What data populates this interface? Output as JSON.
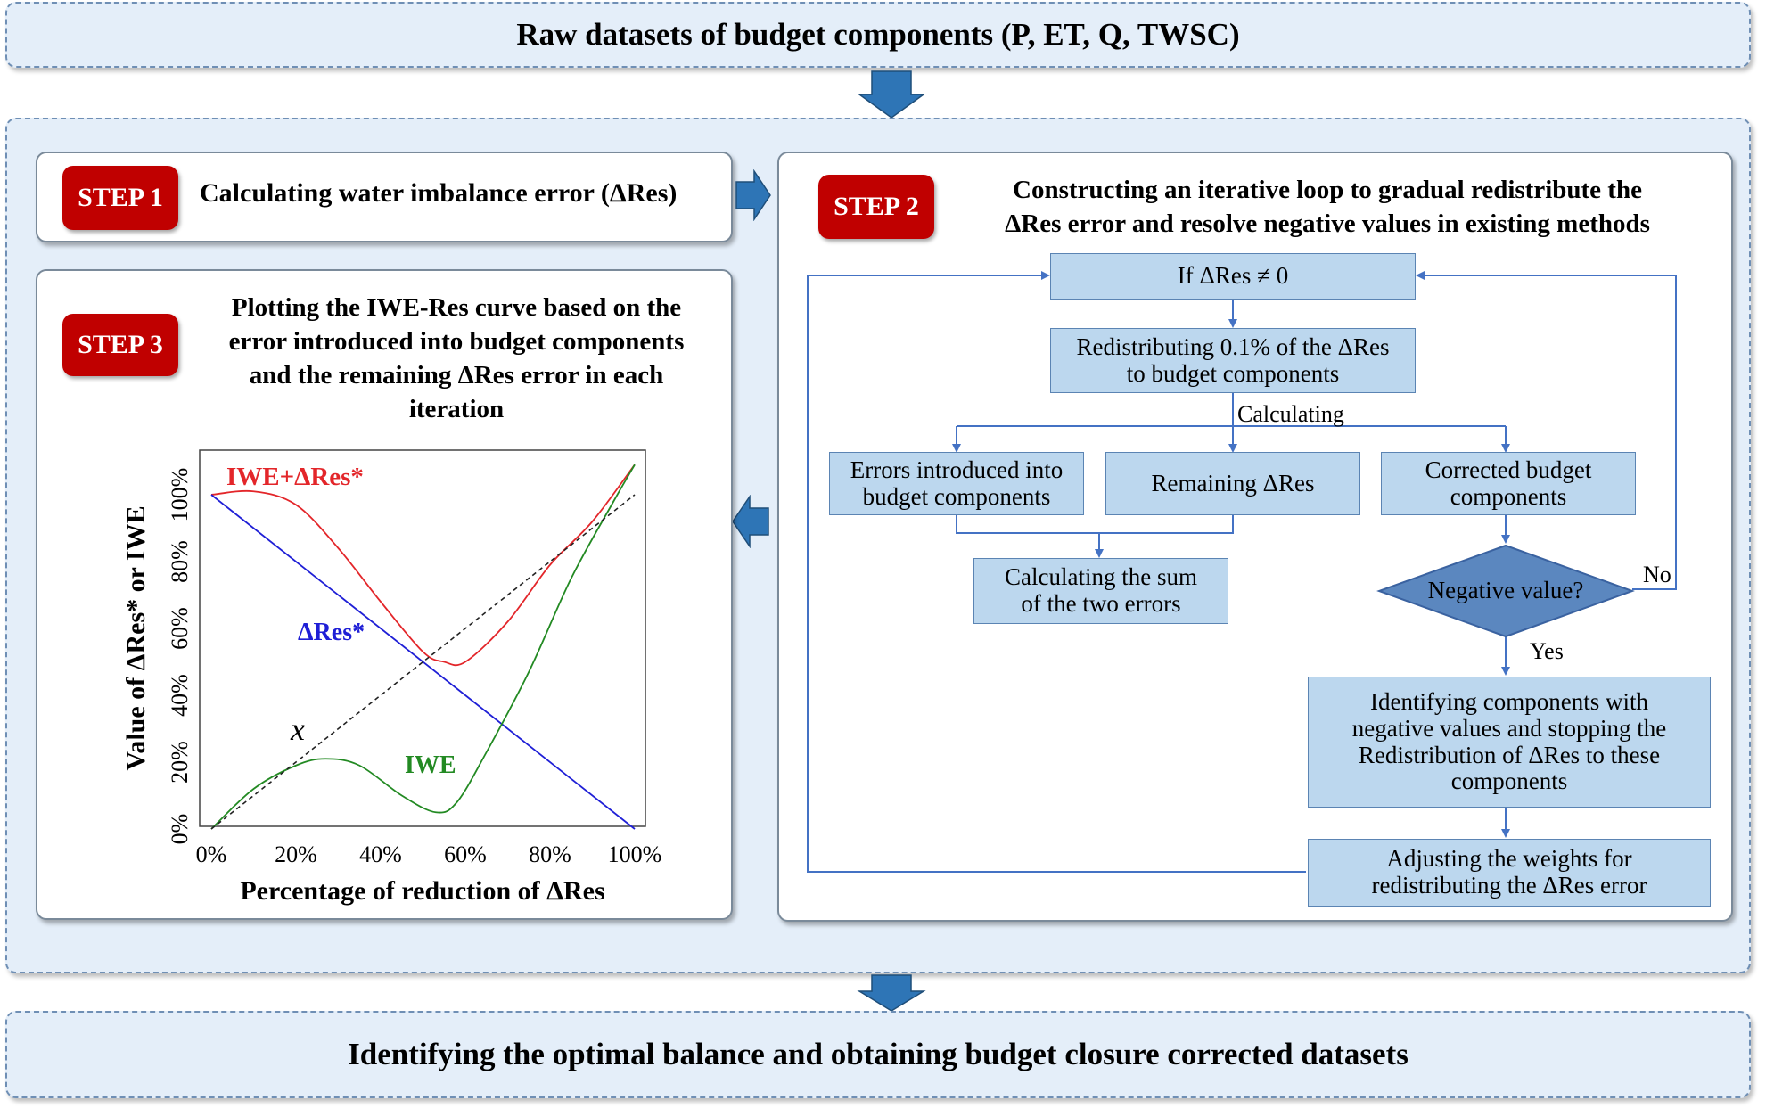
{
  "top_band": {
    "text": "Raw datasets of budget components (P, ET, Q, TWSC)"
  },
  "bottom_band": {
    "text": "Identifying the optimal balance and obtaining budget closure corrected datasets"
  },
  "step1": {
    "badge": "STEP 1",
    "title": "Calculating water imbalance error (ΔRes)"
  },
  "step2": {
    "badge": "STEP 2",
    "title_line1": "Constructing an iterative loop to gradual redistribute the",
    "title_line2": "ΔRes error and resolve negative values in existing methods",
    "box_if": "If ΔRes ≠ 0",
    "box_redistribute_l1": "Redistributing 0.1% of the ΔRes",
    "box_redistribute_l2": "to  budget components",
    "label_calculating": "Calculating",
    "box_errors_l1": "Errors introduced into",
    "box_errors_l2": "budget components",
    "box_remaining": "Remaining ΔRes",
    "box_corrected_l1": "Corrected budget",
    "box_corrected_l2": "components",
    "box_sum_l1": "Calculating the sum",
    "box_sum_l2": "of the two errors",
    "decision": "Negative value?",
    "label_no": "No",
    "label_yes": "Yes",
    "box_identify_l1": "Identifying components with",
    "box_identify_l2": "negative values and stopping the",
    "box_identify_l3": "Redistribution of ΔRes to these",
    "box_identify_l4": "components",
    "box_adjust_l1": "Adjusting the weights for",
    "box_adjust_l2": "redistributing the ΔRes error"
  },
  "step3": {
    "badge": "STEP 3",
    "title_line1": "Plotting the IWE-Res curve based on the",
    "title_line2": "error introduced into budget components",
    "title_line3": "and the remaining ΔRes error in each",
    "title_line4": "iteration"
  },
  "chart_data": {
    "type": "line",
    "xlabel": "Percentage of reduction of ΔRes",
    "ylabel": "Value of ΔRes* or IWE",
    "xlim": [
      0,
      100
    ],
    "ylim": [
      0,
      100
    ],
    "x_ticks": [
      "0%",
      "20%",
      "40%",
      "60%",
      "80%",
      "100%"
    ],
    "y_ticks": [
      "0%",
      "20%",
      "40%",
      "60%",
      "80%",
      "100%"
    ],
    "annotations": {
      "x_label": "x"
    },
    "series": [
      {
        "name": "IWE+ΔRes*",
        "color": "#e3262a",
        "x": [
          0,
          10,
          20,
          30,
          40,
          50,
          55,
          60,
          70,
          80,
          90,
          100
        ],
        "y": [
          100,
          101,
          97,
          84,
          68,
          53,
          50,
          50,
          62,
          79,
          92,
          109
        ]
      },
      {
        "name": "ΔRes*",
        "color": "#1f1fd6",
        "x": [
          0,
          100
        ],
        "y": [
          100,
          0
        ]
      },
      {
        "name": "IWE",
        "color": "#238a23",
        "x": [
          0,
          10,
          20,
          27,
          35,
          45,
          53,
          58,
          65,
          75,
          85,
          95,
          100
        ],
        "y": [
          0,
          12,
          19,
          21,
          19,
          10,
          5,
          8,
          23,
          47,
          75,
          98,
          109
        ]
      },
      {
        "name": "",
        "color": "#222222",
        "dashed": true,
        "x": [
          0,
          100
        ],
        "y": [
          0,
          100
        ]
      }
    ]
  },
  "colors": {
    "badge": "#c00000",
    "arrow": "#2e75b6",
    "flow_box": "#bcd7ee",
    "decision": "#5b87bf",
    "band_bg": "#e4eef9"
  }
}
